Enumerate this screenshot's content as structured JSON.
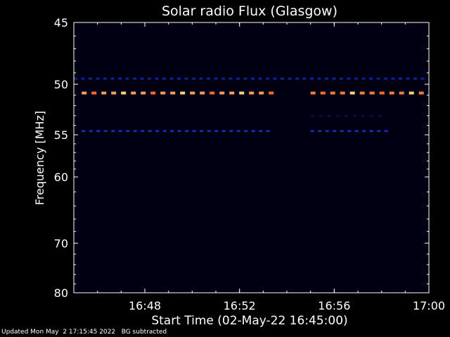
{
  "chart_data": {
    "type": "heatmap",
    "title": "Solar radio Flux (Glasgow)",
    "xlabel": "Start Time (02-May-22 16:45:00)",
    "ylabel": "Frequency [MHz]",
    "xlim": [
      "16:45",
      "17:00"
    ],
    "ylim": [
      45,
      80
    ],
    "x_ticks": [
      "16:48",
      "16:52",
      "16:56",
      "17:00"
    ],
    "y_ticks": [
      45,
      50,
      55,
      60,
      70,
      80
    ],
    "data_gaps": [
      [
        "16:53:30",
        "16:55:00"
      ]
    ],
    "bands": [
      {
        "name": "strong",
        "frequency": 50.8,
        "start": "16:45:20",
        "end": "16:53:30",
        "color": "#ff9a5a",
        "intensity": 0.85
      },
      {
        "name": "strong",
        "frequency": 50.8,
        "start": "16:55:00",
        "end": "16:59:50",
        "color": "#ff7a3a",
        "intensity": 0.9
      },
      {
        "name": "weak",
        "frequency": 49.5,
        "start": "16:45:00",
        "end": "17:00:00",
        "color": "#1a2acc",
        "intensity": 0.4
      },
      {
        "name": "weak",
        "frequency": 54.6,
        "start": "16:45:20",
        "end": "16:53:30",
        "color": "#2233dd",
        "intensity": 0.45
      },
      {
        "name": "weak",
        "frequency": 54.6,
        "start": "16:55:00",
        "end": "16:58:30",
        "color": "#2233dd",
        "intensity": 0.45
      },
      {
        "name": "faint",
        "frequency": 53.0,
        "start": "16:55:00",
        "end": "16:58:00",
        "color": "#0c1470",
        "intensity": 0.2
      }
    ],
    "grid": false,
    "legend": "none"
  },
  "footer": {
    "updated": "Updated Mon May  2 17:15:45 2022",
    "note": "BG subtracted"
  },
  "colors": {
    "background": "#000000",
    "axes": "#ffffff",
    "plot_background": "#000012"
  }
}
